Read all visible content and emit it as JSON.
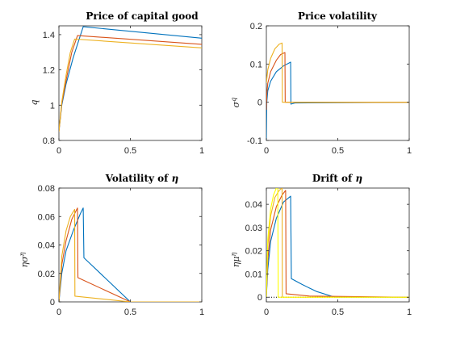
{
  "chart_data": [
    {
      "type": "line",
      "title": "Price of capital good",
      "title_main": "Price of capital good",
      "title_symbol": "",
      "ylabel": "q",
      "ylabel_base": "q",
      "ylabel_sup": "",
      "xlim": [
        0,
        1
      ],
      "ylim": [
        0.8,
        1.45
      ],
      "xticks": [
        "0",
        "0.5",
        "1"
      ],
      "xtick_values": [
        0,
        0.5,
        1
      ],
      "yticks": [
        "0.8",
        "1",
        "1.2",
        "1.4"
      ],
      "ytick_values": [
        0.8,
        1.0,
        1.2,
        1.4
      ],
      "reference_line": null,
      "series": [
        {
          "color": "#0072BD",
          "points": [
            [
              0,
              0.85
            ],
            [
              0.02,
              1.0
            ],
            [
              0.05,
              1.12
            ],
            [
              0.1,
              1.27
            ],
            [
              0.14,
              1.37
            ],
            [
              0.17,
              1.445
            ],
            [
              1.0,
              1.38
            ]
          ]
        },
        {
          "color": "#D95319",
          "points": [
            [
              0,
              0.85
            ],
            [
              0.02,
              1.01
            ],
            [
              0.05,
              1.14
            ],
            [
              0.09,
              1.3
            ],
            [
              0.13,
              1.395
            ],
            [
              1.0,
              1.345
            ]
          ]
        },
        {
          "color": "#EDB120",
          "points": [
            [
              0,
              0.85
            ],
            [
              0.02,
              1.02
            ],
            [
              0.05,
              1.17
            ],
            [
              0.08,
              1.3
            ],
            [
              0.11,
              1.375
            ],
            [
              1.0,
              1.325
            ]
          ]
        }
      ]
    },
    {
      "type": "line",
      "title": "Price volatility",
      "title_main": "Price volatility",
      "title_symbol": "",
      "ylabel": "σq",
      "ylabel_base": "σ",
      "ylabel_sup": "q",
      "xlim": [
        0,
        1
      ],
      "ylim": [
        -0.1,
        0.2
      ],
      "xticks": [
        "0",
        "0.5",
        "1"
      ],
      "xtick_values": [
        0,
        0.5,
        1
      ],
      "yticks": [
        "-0.1",
        "0",
        "0.1",
        "0.2"
      ],
      "ytick_values": [
        -0.1,
        0,
        0.1,
        0.2
      ],
      "reference_line": null,
      "series": [
        {
          "color": "#0072BD",
          "points": [
            [
              0,
              -0.1
            ],
            [
              0.003,
              0.0
            ],
            [
              0.01,
              0.03
            ],
            [
              0.03,
              0.055
            ],
            [
              0.07,
              0.08
            ],
            [
              0.12,
              0.095
            ],
            [
              0.17,
              0.105
            ],
            [
              0.172,
              -0.005
            ],
            [
              0.2,
              -0.002
            ],
            [
              1.0,
              0.0
            ]
          ]
        },
        {
          "color": "#D95319",
          "points": [
            [
              0,
              -0.02
            ],
            [
              0.003,
              0.02
            ],
            [
              0.01,
              0.05
            ],
            [
              0.03,
              0.08
            ],
            [
              0.07,
              0.11
            ],
            [
              0.1,
              0.125
            ],
            [
              0.13,
              0.13
            ],
            [
              0.132,
              0.0
            ],
            [
              1.0,
              0.0
            ]
          ]
        },
        {
          "color": "#EDB120",
          "points": [
            [
              0,
              0.05
            ],
            [
              0.01,
              0.085
            ],
            [
              0.03,
              0.115
            ],
            [
              0.06,
              0.14
            ],
            [
              0.09,
              0.152
            ],
            [
              0.11,
              0.155
            ],
            [
              0.112,
              0.0
            ],
            [
              1.0,
              0.0
            ]
          ]
        }
      ]
    },
    {
      "type": "line",
      "title": "Volatility of η",
      "title_main": "Volatility of ",
      "title_symbol": "η",
      "ylabel": "ησ^η",
      "ylabel_base": "ησ",
      "ylabel_sup": "η",
      "xlim": [
        0,
        1
      ],
      "ylim": [
        0,
        0.08
      ],
      "xticks": [
        "0",
        "0.5",
        "1"
      ],
      "xtick_values": [
        0,
        0.5,
        1
      ],
      "yticks": [
        "0",
        "0.02",
        "0.04",
        "0.06",
        "0.08"
      ],
      "ytick_values": [
        0,
        0.02,
        0.04,
        0.06,
        0.08
      ],
      "reference_line": null,
      "series": [
        {
          "color": "#0072BD",
          "points": [
            [
              0,
              0.0
            ],
            [
              0.02,
              0.02
            ],
            [
              0.05,
              0.036
            ],
            [
              0.1,
              0.05
            ],
            [
              0.15,
              0.062
            ],
            [
              0.17,
              0.066
            ],
            [
              0.175,
              0.031
            ],
            [
              0.5,
              0.0
            ],
            [
              1.0,
              0.0
            ]
          ]
        },
        {
          "color": "#D95319",
          "points": [
            [
              0,
              0.0
            ],
            [
              0.02,
              0.026
            ],
            [
              0.05,
              0.043
            ],
            [
              0.09,
              0.058
            ],
            [
              0.13,
              0.066
            ],
            [
              0.133,
              0.017
            ],
            [
              0.5,
              0.0
            ],
            [
              1.0,
              0.0
            ]
          ]
        },
        {
          "color": "#EDB120",
          "points": [
            [
              0,
              0.0
            ],
            [
              0.02,
              0.032
            ],
            [
              0.05,
              0.05
            ],
            [
              0.08,
              0.06
            ],
            [
              0.11,
              0.065
            ],
            [
              0.112,
              0.004
            ],
            [
              0.5,
              0.0
            ],
            [
              1.0,
              0.0
            ]
          ]
        }
      ]
    },
    {
      "type": "line",
      "title": "Drift of η",
      "title_main": "Drift of ",
      "title_symbol": "η",
      "ylabel": "ημ^η",
      "ylabel_base": "ημ",
      "ylabel_sup": "η",
      "xlim": [
        0,
        1
      ],
      "ylim": [
        -0.002,
        0.047
      ],
      "xticks": [
        "0",
        "0.5",
        "1"
      ],
      "xtick_values": [
        0,
        0.5,
        1
      ],
      "yticks": [
        "0",
        "0.01",
        "0.02",
        "0.03",
        "0.04"
      ],
      "ytick_values": [
        0,
        0.01,
        0.02,
        0.03,
        0.04
      ],
      "reference_line": {
        "y": 0,
        "style": "dotted"
      },
      "series": [
        {
          "color": "#0072BD",
          "points": [
            [
              0,
              0.0
            ],
            [
              0.01,
              0.012
            ],
            [
              0.03,
              0.024
            ],
            [
              0.07,
              0.034
            ],
            [
              0.12,
              0.041
            ],
            [
              0.17,
              0.0435
            ],
            [
              0.175,
              0.008
            ],
            [
              0.25,
              0.0055
            ],
            [
              0.35,
              0.0025
            ],
            [
              0.48,
              0.0
            ],
            [
              1.0,
              0.0
            ]
          ]
        },
        {
          "color": "#D95319",
          "points": [
            [
              0,
              0.0
            ],
            [
              0.01,
              0.016
            ],
            [
              0.03,
              0.029
            ],
            [
              0.07,
              0.039
            ],
            [
              0.11,
              0.044
            ],
            [
              0.135,
              0.046
            ],
            [
              0.138,
              0.0015
            ],
            [
              0.3,
              0.0005
            ],
            [
              1.0,
              0.0
            ]
          ]
        },
        {
          "color": "#EDB120",
          "points": [
            [
              0,
              0.0
            ],
            [
              0.01,
              0.022
            ],
            [
              0.03,
              0.035
            ],
            [
              0.06,
              0.043
            ],
            [
              0.09,
              0.046
            ],
            [
              0.11,
              0.047
            ],
            [
              0.112,
              0.0
            ],
            [
              1.0,
              0.0
            ]
          ]
        },
        {
          "color": "#FFFF00",
          "points": [
            [
              0,
              0.0
            ],
            [
              0.01,
              0.025
            ],
            [
              0.03,
              0.038
            ],
            [
              0.05,
              0.044
            ],
            [
              0.07,
              0.047
            ],
            [
              0.08,
              0.048
            ],
            [
              0.083,
              0.0
            ],
            [
              1.0,
              0.0
            ]
          ]
        }
      ]
    }
  ]
}
